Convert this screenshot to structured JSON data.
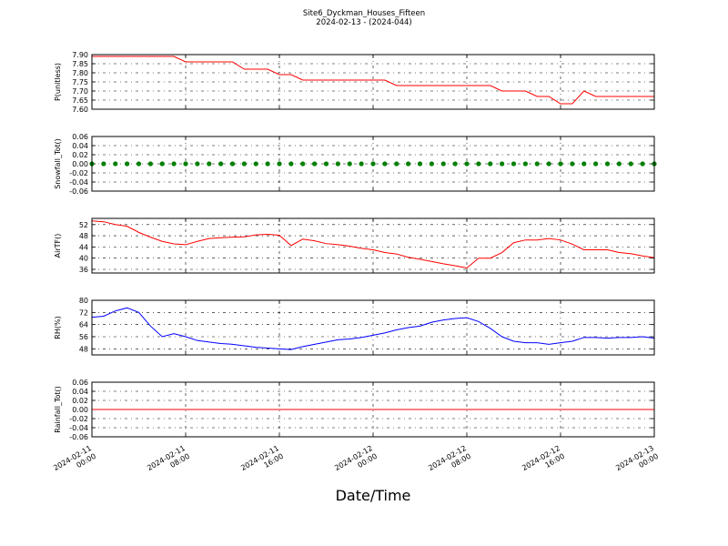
{
  "chart_data": [
    {
      "type": "line",
      "title": "Site6_Dyckman_Houses_Fifteen",
      "subtitle": "2024-02-13 - (2024-044)",
      "ylabel": "P(unitless)",
      "x": [
        "2024-02-11 00:00",
        "2024-02-11 01:00",
        "2024-02-11 02:00",
        "2024-02-11 03:00",
        "2024-02-11 04:00",
        "2024-02-11 05:00",
        "2024-02-11 06:00",
        "2024-02-11 07:00",
        "2024-02-11 08:00",
        "2024-02-11 09:00",
        "2024-02-11 10:00",
        "2024-02-11 11:00",
        "2024-02-11 12:00",
        "2024-02-11 13:00",
        "2024-02-11 14:00",
        "2024-02-11 15:00",
        "2024-02-11 16:00",
        "2024-02-11 17:00",
        "2024-02-11 18:00",
        "2024-02-11 19:00",
        "2024-02-11 20:00",
        "2024-02-11 21:00",
        "2024-02-11 22:00",
        "2024-02-11 23:00",
        "2024-02-12 00:00",
        "2024-02-12 01:00",
        "2024-02-12 02:00",
        "2024-02-12 03:00",
        "2024-02-12 04:00",
        "2024-02-12 05:00",
        "2024-02-12 06:00",
        "2024-02-12 07:00",
        "2024-02-12 08:00",
        "2024-02-12 09:00",
        "2024-02-12 10:00",
        "2024-02-12 11:00",
        "2024-02-12 12:00",
        "2024-02-12 13:00",
        "2024-02-12 14:00",
        "2024-02-12 15:00",
        "2024-02-12 16:00",
        "2024-02-12 17:00",
        "2024-02-12 18:00",
        "2024-02-12 19:00",
        "2024-02-12 20:00",
        "2024-02-12 21:00",
        "2024-02-12 22:00",
        "2024-02-12 23:00",
        "2024-02-13 00:00"
      ],
      "series": [
        {
          "color": "#ff0000",
          "values": [
            7.89,
            7.89,
            7.89,
            7.89,
            7.89,
            7.89,
            7.89,
            7.89,
            7.86,
            7.86,
            7.86,
            7.86,
            7.86,
            7.82,
            7.82,
            7.82,
            7.79,
            7.79,
            7.76,
            7.76,
            7.76,
            7.76,
            7.76,
            7.76,
            7.76,
            7.76,
            7.73,
            7.73,
            7.73,
            7.73,
            7.73,
            7.73,
            7.73,
            7.73,
            7.73,
            7.7,
            7.7,
            7.7,
            7.67,
            7.67,
            7.63,
            7.63,
            7.7,
            7.67,
            7.67,
            7.67,
            7.67,
            7.67,
            7.67
          ]
        }
      ],
      "xlim": [
        "2024-02-11 00:00",
        "2024-02-13 00:00"
      ],
      "xticks": [
        "2024-02-11 00:00",
        "2024-02-11 08:00",
        "2024-02-11 16:00",
        "2024-02-12 00:00",
        "2024-02-12 08:00",
        "2024-02-12 16:00",
        "2024-02-13 00:00"
      ],
      "ylim": [
        7.6,
        7.9
      ],
      "yticks": [
        {
          "value": 7.6,
          "label": "7.60"
        },
        7.65,
        {
          "value": 7.7,
          "label": "7.70"
        },
        7.75,
        {
          "value": 7.8,
          "label": "7.80"
        },
        7.85,
        {
          "value": 7.9,
          "label": "7.90"
        }
      ],
      "grid": true
    },
    {
      "type": "scatter",
      "ylabel": "Snowfall_Tot()",
      "x": [
        "2024-02-11 00:00",
        "2024-02-11 01:00",
        "2024-02-11 02:00",
        "2024-02-11 03:00",
        "2024-02-11 04:00",
        "2024-02-11 05:00",
        "2024-02-11 06:00",
        "2024-02-11 07:00",
        "2024-02-11 08:00",
        "2024-02-11 09:00",
        "2024-02-11 10:00",
        "2024-02-11 11:00",
        "2024-02-11 12:00",
        "2024-02-11 13:00",
        "2024-02-11 14:00",
        "2024-02-11 15:00",
        "2024-02-11 16:00",
        "2024-02-11 17:00",
        "2024-02-11 18:00",
        "2024-02-11 19:00",
        "2024-02-11 20:00",
        "2024-02-11 21:00",
        "2024-02-11 22:00",
        "2024-02-11 23:00",
        "2024-02-12 00:00",
        "2024-02-12 01:00",
        "2024-02-12 02:00",
        "2024-02-12 03:00",
        "2024-02-12 04:00",
        "2024-02-12 05:00",
        "2024-02-12 06:00",
        "2024-02-12 07:00",
        "2024-02-12 08:00",
        "2024-02-12 09:00",
        "2024-02-12 10:00",
        "2024-02-12 11:00",
        "2024-02-12 12:00",
        "2024-02-12 13:00",
        "2024-02-12 14:00",
        "2024-02-12 15:00",
        "2024-02-12 16:00",
        "2024-02-12 17:00",
        "2024-02-12 18:00",
        "2024-02-12 19:00",
        "2024-02-12 20:00",
        "2024-02-12 21:00",
        "2024-02-12 22:00",
        "2024-02-12 23:00",
        "2024-02-13 00:00"
      ],
      "series": [
        {
          "color": "#008000",
          "values": [
            0,
            0,
            0,
            0,
            0,
            0,
            0,
            0,
            0,
            0,
            0,
            0,
            0,
            0,
            0,
            0,
            0,
            0,
            0,
            0,
            0,
            0,
            0,
            0,
            0,
            0,
            0,
            0,
            0,
            0,
            0,
            0,
            0,
            0,
            0,
            0,
            0,
            0,
            0,
            0,
            0,
            0,
            0,
            0,
            0,
            0,
            0,
            0,
            0
          ]
        }
      ],
      "xlim": [
        "2024-02-11 00:00",
        "2024-02-13 00:00"
      ],
      "xticks": [
        "2024-02-11 00:00",
        "2024-02-11 08:00",
        "2024-02-11 16:00",
        "2024-02-12 00:00",
        "2024-02-12 08:00",
        "2024-02-12 16:00",
        "2024-02-13 00:00"
      ],
      "ylim": [
        -0.06,
        0.06
      ],
      "yticks": [
        -0.06,
        -0.04,
        -0.02,
        {
          "value": 0,
          "label": "0.00"
        },
        0.02,
        0.04,
        0.06
      ],
      "grid": true
    },
    {
      "type": "line",
      "ylabel": "AirTF()",
      "x": [
        "2024-02-11 00:00",
        "2024-02-11 01:00",
        "2024-02-11 02:00",
        "2024-02-11 03:00",
        "2024-02-11 04:00",
        "2024-02-11 05:00",
        "2024-02-11 06:00",
        "2024-02-11 07:00",
        "2024-02-11 08:00",
        "2024-02-11 09:00",
        "2024-02-11 10:00",
        "2024-02-11 11:00",
        "2024-02-11 12:00",
        "2024-02-11 13:00",
        "2024-02-11 14:00",
        "2024-02-11 15:00",
        "2024-02-11 16:00",
        "2024-02-11 17:00",
        "2024-02-11 18:00",
        "2024-02-11 19:00",
        "2024-02-11 20:00",
        "2024-02-11 21:00",
        "2024-02-11 22:00",
        "2024-02-11 23:00",
        "2024-02-12 00:00",
        "2024-02-12 01:00",
        "2024-02-12 02:00",
        "2024-02-12 03:00",
        "2024-02-12 04:00",
        "2024-02-12 05:00",
        "2024-02-12 06:00",
        "2024-02-12 07:00",
        "2024-02-12 08:00",
        "2024-02-12 09:00",
        "2024-02-12 10:00",
        "2024-02-12 11:00",
        "2024-02-12 12:00",
        "2024-02-12 13:00",
        "2024-02-12 14:00",
        "2024-02-12 15:00",
        "2024-02-12 16:00",
        "2024-02-12 17:00",
        "2024-02-12 18:00",
        "2024-02-12 19:00",
        "2024-02-12 20:00",
        "2024-02-12 21:00",
        "2024-02-12 22:00",
        "2024-02-12 23:00",
        "2024-02-13 00:00"
      ],
      "series": [
        {
          "color": "#ff0000",
          "values": [
            53.3,
            53,
            52,
            51.4,
            49.2,
            47.5,
            46,
            45.1,
            44.8,
            46,
            47,
            47.3,
            47.5,
            47.6,
            48.3,
            48.5,
            48.2,
            44.5,
            46.8,
            46.2,
            45.2,
            44.8,
            44.3,
            43.5,
            43,
            42,
            41.5,
            40.3,
            39.6,
            38.8,
            38,
            37.3,
            36.5,
            40,
            40,
            42,
            45.5,
            46.5,
            46.5,
            47,
            46.5,
            45,
            43,
            43,
            43,
            42,
            41.6,
            40.8,
            40.2
          ]
        }
      ],
      "xlim": [
        "2024-02-11 00:00",
        "2024-02-13 00:00"
      ],
      "xticks": [
        "2024-02-11 00:00",
        "2024-02-11 08:00",
        "2024-02-11 16:00",
        "2024-02-12 00:00",
        "2024-02-12 08:00",
        "2024-02-12 16:00",
        "2024-02-13 00:00"
      ],
      "ylim": [
        34.7,
        54.2
      ],
      "yticks": [
        36,
        40,
        44,
        48,
        52
      ],
      "grid": true
    },
    {
      "type": "line",
      "ylabel": "RH(%)",
      "x": [
        "2024-02-11 00:00",
        "2024-02-11 01:00",
        "2024-02-11 02:00",
        "2024-02-11 03:00",
        "2024-02-11 04:00",
        "2024-02-11 05:00",
        "2024-02-11 06:00",
        "2024-02-11 07:00",
        "2024-02-11 08:00",
        "2024-02-11 09:00",
        "2024-02-11 10:00",
        "2024-02-11 11:00",
        "2024-02-11 12:00",
        "2024-02-11 13:00",
        "2024-02-11 14:00",
        "2024-02-11 15:00",
        "2024-02-11 16:00",
        "2024-02-11 17:00",
        "2024-02-11 18:00",
        "2024-02-11 19:00",
        "2024-02-11 20:00",
        "2024-02-11 21:00",
        "2024-02-11 22:00",
        "2024-02-11 23:00",
        "2024-02-12 00:00",
        "2024-02-12 01:00",
        "2024-02-12 02:00",
        "2024-02-12 03:00",
        "2024-02-12 04:00",
        "2024-02-12 05:00",
        "2024-02-12 06:00",
        "2024-02-12 07:00",
        "2024-02-12 08:00",
        "2024-02-12 09:00",
        "2024-02-12 10:00",
        "2024-02-12 11:00",
        "2024-02-12 12:00",
        "2024-02-12 13:00",
        "2024-02-12 14:00",
        "2024-02-12 15:00",
        "2024-02-12 16:00",
        "2024-02-12 17:00",
        "2024-02-12 18:00",
        "2024-02-12 19:00",
        "2024-02-12 20:00",
        "2024-02-12 21:00",
        "2024-02-12 22:00",
        "2024-02-12 23:00",
        "2024-02-13 00:00"
      ],
      "series": [
        {
          "color": "#0000ff",
          "values": [
            68.8,
            69.5,
            73,
            75,
            72,
            63,
            56,
            58,
            56,
            53.5,
            52.5,
            51.5,
            51,
            50,
            49,
            48.5,
            48,
            47.5,
            49.5,
            51,
            52.5,
            54,
            54.5,
            55.5,
            57,
            58.5,
            60.5,
            62,
            63,
            65.5,
            67,
            68,
            68.5,
            66,
            61.5,
            56,
            53,
            52,
            52,
            51,
            52,
            53,
            55.5,
            55.5,
            55,
            55.5,
            55.5,
            56,
            55
          ]
        }
      ],
      "xlim": [
        "2024-02-11 00:00",
        "2024-02-13 00:00"
      ],
      "xticks": [
        "2024-02-11 00:00",
        "2024-02-11 08:00",
        "2024-02-11 16:00",
        "2024-02-12 00:00",
        "2024-02-12 08:00",
        "2024-02-12 16:00",
        "2024-02-13 00:00"
      ],
      "ylim": [
        44,
        80
      ],
      "yticks": [
        48,
        56,
        64,
        72,
        80
      ],
      "grid": true
    },
    {
      "type": "line",
      "ylabel": "Rainfall_Tot()",
      "xlabel": "Date/Time",
      "x": [
        "2024-02-11 00:00",
        "2024-02-13 00:00"
      ],
      "series": [
        {
          "color": "#ff0000",
          "values": [
            0,
            0
          ]
        }
      ],
      "xlim": [
        "2024-02-11 00:00",
        "2024-02-13 00:00"
      ],
      "xticks": [
        "2024-02-11 00:00",
        "2024-02-11 08:00",
        "2024-02-11 16:00",
        "2024-02-12 00:00",
        "2024-02-12 08:00",
        "2024-02-12 16:00",
        "2024-02-13 00:00"
      ],
      "ylim": [
        -0.06,
        0.06
      ],
      "yticks": [
        -0.06,
        -0.04,
        -0.02,
        {
          "value": 0,
          "label": "0.00"
        },
        0.02,
        0.04,
        0.06
      ],
      "grid": true
    }
  ]
}
